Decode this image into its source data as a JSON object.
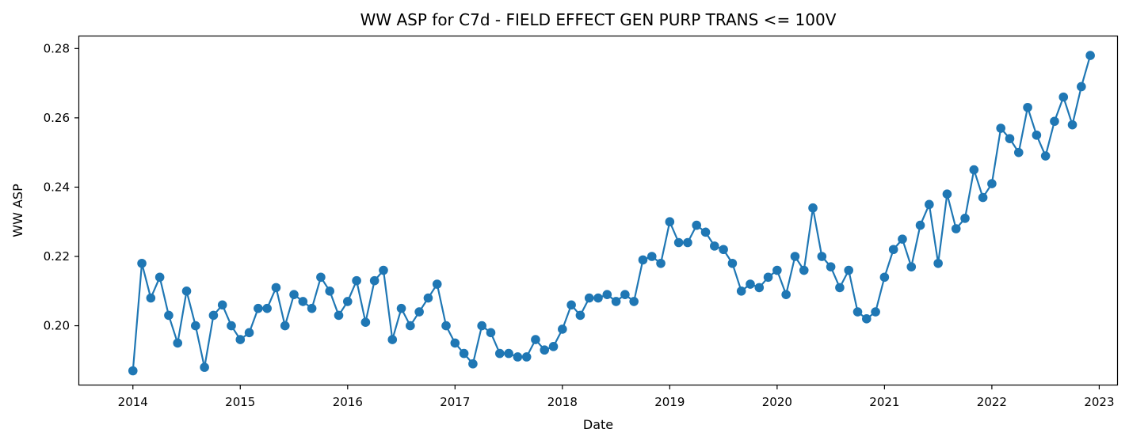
{
  "chart_data": {
    "type": "line",
    "title": "WW ASP for C7d - FIELD EFFECT GEN PURP TRANS <= 100V",
    "xlabel": "Date",
    "ylabel": "WW ASP",
    "xlim": [
      "2013-07",
      "2023-03"
    ],
    "ylim": [
      0.183,
      0.2835
    ],
    "x_ticks": [
      "2014",
      "2015",
      "2016",
      "2017",
      "2018",
      "2019",
      "2020",
      "2021",
      "2022",
      "2023"
    ],
    "y_ticks": [
      "0.20",
      "0.22",
      "0.24",
      "0.26",
      "0.28"
    ],
    "grid": false,
    "markers": true,
    "line_color": "#1f77b4",
    "series": [
      {
        "x": [
          "2014-01",
          "2014-02",
          "2014-03",
          "2014-04",
          "2014-05",
          "2014-06",
          "2014-07",
          "2014-08",
          "2014-09",
          "2014-10",
          "2014-11",
          "2014-12",
          "2015-01",
          "2015-02",
          "2015-03",
          "2015-04",
          "2015-05",
          "2015-06",
          "2015-07",
          "2015-08",
          "2015-09",
          "2015-10",
          "2015-11",
          "2015-12",
          "2016-01",
          "2016-02",
          "2016-03",
          "2016-04",
          "2016-05",
          "2016-06",
          "2016-07",
          "2016-08",
          "2016-09",
          "2016-10",
          "2016-11",
          "2016-12",
          "2017-01",
          "2017-02",
          "2017-03",
          "2017-04",
          "2017-05",
          "2017-06",
          "2017-07",
          "2017-08",
          "2017-09",
          "2017-10",
          "2017-11",
          "2017-12",
          "2018-01",
          "2018-02",
          "2018-03",
          "2018-04",
          "2018-05",
          "2018-06",
          "2018-07",
          "2018-08",
          "2018-09",
          "2018-10",
          "2018-11",
          "2018-12",
          "2019-01",
          "2019-02",
          "2019-03",
          "2019-04",
          "2019-05",
          "2019-06",
          "2019-07",
          "2019-08",
          "2019-09",
          "2019-10",
          "2019-11",
          "2019-12",
          "2020-01",
          "2020-02",
          "2020-03",
          "2020-04",
          "2020-05",
          "2020-06",
          "2020-07",
          "2020-08",
          "2020-09",
          "2020-10",
          "2020-11",
          "2020-12",
          "2021-01",
          "2021-02",
          "2021-03",
          "2021-04",
          "2021-05",
          "2021-06",
          "2021-07",
          "2021-08",
          "2021-09",
          "2021-10",
          "2021-11",
          "2021-12",
          "2022-01",
          "2022-02",
          "2022-03",
          "2022-04",
          "2022-05",
          "2022-06",
          "2022-07",
          "2022-08",
          "2022-09",
          "2022-10",
          "2022-11",
          "2022-12"
        ],
        "values": [
          0.187,
          0.218,
          0.208,
          0.214,
          0.203,
          0.195,
          0.21,
          0.2,
          0.188,
          0.203,
          0.206,
          0.2,
          0.196,
          0.198,
          0.205,
          0.205,
          0.211,
          0.2,
          0.209,
          0.207,
          0.205,
          0.214,
          0.21,
          0.203,
          0.207,
          0.213,
          0.201,
          0.213,
          0.216,
          0.196,
          0.205,
          0.2,
          0.204,
          0.208,
          0.212,
          0.2,
          0.195,
          0.192,
          0.189,
          0.2,
          0.198,
          0.192,
          0.192,
          0.191,
          0.191,
          0.196,
          0.193,
          0.194,
          0.199,
          0.206,
          0.203,
          0.208,
          0.208,
          0.209,
          0.207,
          0.209,
          0.207,
          0.219,
          0.22,
          0.218,
          0.23,
          0.224,
          0.224,
          0.229,
          0.227,
          0.223,
          0.222,
          0.218,
          0.21,
          0.212,
          0.211,
          0.214,
          0.216,
          0.209,
          0.22,
          0.216,
          0.234,
          0.22,
          0.217,
          0.211,
          0.216,
          0.204,
          0.202,
          0.204,
          0.214,
          0.222,
          0.225,
          0.217,
          0.229,
          0.235,
          0.218,
          0.238,
          0.228,
          0.231,
          0.245,
          0.237,
          0.241,
          0.257,
          0.254,
          0.25,
          0.263,
          0.255,
          0.249,
          0.259,
          0.266,
          0.258,
          0.269,
          0.278
        ]
      }
    ]
  }
}
